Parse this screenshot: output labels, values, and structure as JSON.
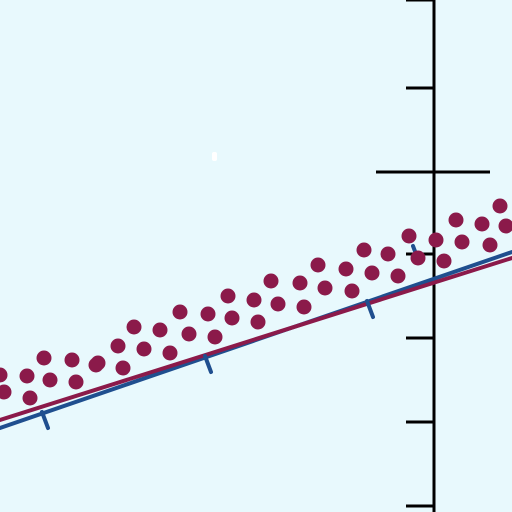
{
  "colors": {
    "background": "#e8f9fd",
    "axis": "#000000",
    "scatter": "#8b1a4a",
    "line_primary": "#1f4f8f",
    "line_secondary": "#8b1a4a",
    "ticks_blue": "#1f4f8f",
    "highlight": "#ffffff"
  },
  "chart_data": {
    "type": "scatter",
    "title": "",
    "xlabel": "",
    "ylabel": "",
    "grid": false,
    "legend": "none",
    "xlim": [
      0,
      512
    ],
    "ylim": [
      0,
      512
    ],
    "y_axis_x": 434,
    "y_ticks": [
      0,
      88,
      172,
      254,
      338,
      422,
      506
    ],
    "major_tick_y": 172,
    "scatter_points": [
      [
        0,
        375
      ],
      [
        27,
        376
      ],
      [
        44,
        358
      ],
      [
        72,
        360
      ],
      [
        98,
        363
      ],
      [
        118,
        346
      ],
      [
        134,
        327
      ],
      [
        160,
        330
      ],
      [
        180,
        312
      ],
      [
        208,
        314
      ],
      [
        228,
        296
      ],
      [
        254,
        300
      ],
      [
        271,
        281
      ],
      [
        300,
        283
      ],
      [
        318,
        265
      ],
      [
        346,
        269
      ],
      [
        364,
        250
      ],
      [
        388,
        254
      ],
      [
        409,
        236
      ],
      [
        436,
        240
      ],
      [
        456,
        220
      ],
      [
        482,
        224
      ],
      [
        500,
        206
      ],
      [
        4,
        392
      ],
      [
        30,
        398
      ],
      [
        50,
        380
      ],
      [
        76,
        382
      ],
      [
        96,
        365
      ],
      [
        123,
        368
      ],
      [
        144,
        349
      ],
      [
        170,
        353
      ],
      [
        189,
        334
      ],
      [
        215,
        337
      ],
      [
        232,
        318
      ],
      [
        258,
        322
      ],
      [
        278,
        304
      ],
      [
        304,
        307
      ],
      [
        325,
        288
      ],
      [
        352,
        291
      ],
      [
        372,
        273
      ],
      [
        398,
        276
      ],
      [
        418,
        258
      ],
      [
        444,
        261
      ],
      [
        462,
        242
      ],
      [
        490,
        245
      ],
      [
        506,
        226
      ]
    ],
    "series": [
      {
        "points": [
          [
            0,
            420
          ],
          [
            512,
            258
          ]
        ]
      },
      {
        "points": [
          [
            0,
            428
          ],
          [
            512,
            252
          ]
        ]
      }
    ],
    "blue_tick_marks": [
      [
        45,
        424
      ],
      [
        208,
        368
      ],
      [
        370,
        313
      ],
      [
        416,
        258
      ]
    ]
  }
}
